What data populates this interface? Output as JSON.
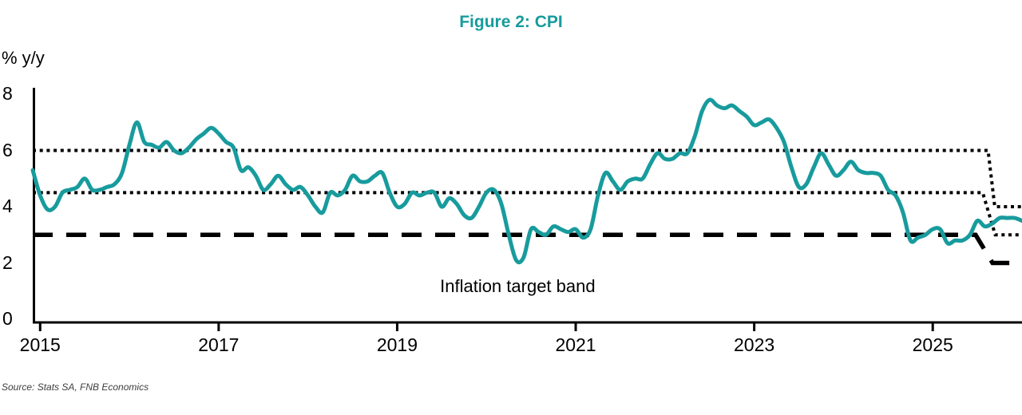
{
  "title": "Figure 2: CPI",
  "source": "Source: Stats SA, FNB Economics",
  "colors": {
    "accent_teal": "#189B9D",
    "band_black": "#000000",
    "axis_black": "#000000",
    "source_gray": "#3d3d3d"
  },
  "chart_data": {
    "type": "line",
    "title": "Figure 2: CPI",
    "ylabel": "% y/y",
    "xlabel": "",
    "grid": false,
    "legend": "none",
    "xlim": [
      2014.917,
      2026.0
    ],
    "ylim": [
      0,
      8
    ],
    "y_ticks": [
      "0",
      "2",
      "4",
      "6",
      "8"
    ],
    "y_tick_values": [
      0,
      2,
      4,
      6,
      8
    ],
    "x_ticks": [
      "2015",
      "2017",
      "2019",
      "2021",
      "2023",
      "2025"
    ],
    "x_tick_values": [
      2015,
      2017,
      2019,
      2021,
      2023,
      2025
    ],
    "series": [
      {
        "name": "CPI % y/y",
        "color": "#189B9D",
        "frequency": "monthly",
        "start_year": 2014,
        "start_month": 12,
        "values": [
          5.3,
          4.4,
          3.9,
          4.0,
          4.5,
          4.6,
          4.7,
          5.0,
          4.6,
          4.6,
          4.7,
          4.8,
          5.2,
          6.2,
          7.0,
          6.3,
          6.2,
          6.1,
          6.3,
          6.0,
          5.9,
          6.1,
          6.4,
          6.6,
          6.8,
          6.6,
          6.3,
          6.1,
          5.3,
          5.4,
          5.1,
          4.6,
          4.8,
          5.1,
          4.8,
          4.6,
          4.7,
          4.4,
          4.0,
          3.8,
          4.5,
          4.4,
          4.6,
          5.1,
          4.9,
          4.9,
          5.1,
          5.2,
          4.5,
          4.0,
          4.1,
          4.5,
          4.4,
          4.5,
          4.5,
          4.0,
          4.3,
          4.1,
          3.7,
          3.6,
          4.0,
          4.5,
          4.6,
          4.1,
          3.0,
          2.1,
          2.2,
          3.2,
          3.1,
          3.0,
          3.3,
          3.2,
          3.1,
          3.2,
          2.9,
          3.2,
          4.4,
          5.2,
          4.9,
          4.6,
          4.9,
          5.0,
          5.0,
          5.5,
          5.9,
          5.7,
          5.7,
          5.9,
          5.9,
          6.5,
          7.4,
          7.8,
          7.6,
          7.5,
          7.6,
          7.4,
          7.2,
          6.9,
          7.0,
          7.1,
          6.8,
          6.3,
          5.4,
          4.7,
          4.8,
          5.4,
          5.9,
          5.5,
          5.1,
          5.3,
          5.6,
          5.3,
          5.2,
          5.2,
          5.1,
          4.6,
          4.4,
          3.8,
          2.8,
          2.9,
          3.0,
          3.2,
          3.2,
          2.7,
          2.8,
          2.8,
          3.0,
          3.5,
          3.3,
          3.4,
          3.6,
          3.6,
          3.6,
          3.5
        ]
      }
    ],
    "reference_lines": [
      {
        "name": "target-band-upper",
        "style": "dotted",
        "value_before_step": 6.0,
        "value_after_step": 4.0,
        "points": [
          [
            2014.917,
            6.0
          ],
          [
            2025.62,
            6.0
          ],
          [
            2025.695,
            4.0
          ],
          [
            2026.0,
            4.0
          ]
        ]
      },
      {
        "name": "target-band-midpoint",
        "style": "dotted",
        "value_before_step": 4.5,
        "value_after_step": 3.0,
        "points": [
          [
            2014.917,
            4.5
          ],
          [
            2025.56,
            4.5
          ],
          [
            2025.7,
            3.0
          ],
          [
            2026.0,
            3.0
          ]
        ]
      },
      {
        "name": "target-band-lower",
        "style": "dashed",
        "value_before_step": 3.0,
        "value_after_step": 2.0,
        "points": [
          [
            2014.917,
            3.0
          ],
          [
            2025.48,
            3.0
          ],
          [
            2025.67,
            2.0
          ],
          [
            2026.0,
            2.0
          ]
        ]
      }
    ],
    "annotations": [
      {
        "text": "Inflation target band",
        "x": 2020.35,
        "y": 1.15
      }
    ]
  }
}
